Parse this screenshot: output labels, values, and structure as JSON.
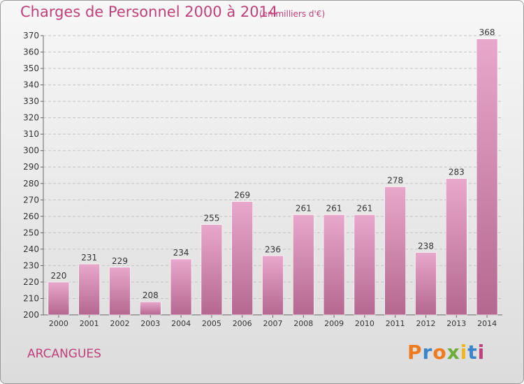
{
  "title": "Charges de Personnel 2000 à 2014",
  "unit_note": "(en milliers d'€)",
  "location": "ARCANGUES",
  "logo_text": "Proxiti",
  "logo_colors": [
    "#f07a1e",
    "#3a84c9",
    "#f07a1e",
    "#6cae3a",
    "#f2b51c",
    "#3a84c9",
    "#c0407a"
  ],
  "colors": {
    "accent": "#c0407a",
    "bar_top": "#e8a8cb",
    "bar_bottom": "#b5688f"
  },
  "chart_data": {
    "type": "bar",
    "title": "Charges de Personnel 2000 à 2014",
    "xlabel": "",
    "ylabel": "",
    "categories": [
      "2000",
      "2001",
      "2002",
      "2003",
      "2004",
      "2005",
      "2006",
      "2007",
      "2008",
      "2009",
      "2010",
      "2011",
      "2012",
      "2013",
      "2014"
    ],
    "values": [
      220,
      231,
      229,
      208,
      234,
      255,
      269,
      236,
      261,
      261,
      261,
      278,
      238,
      283,
      368
    ],
    "ylim": [
      200,
      370
    ],
    "yticks": [
      200,
      210,
      220,
      230,
      240,
      250,
      260,
      270,
      280,
      290,
      300,
      310,
      320,
      330,
      340,
      350,
      360,
      370
    ],
    "grid": true,
    "legend": "none"
  }
}
